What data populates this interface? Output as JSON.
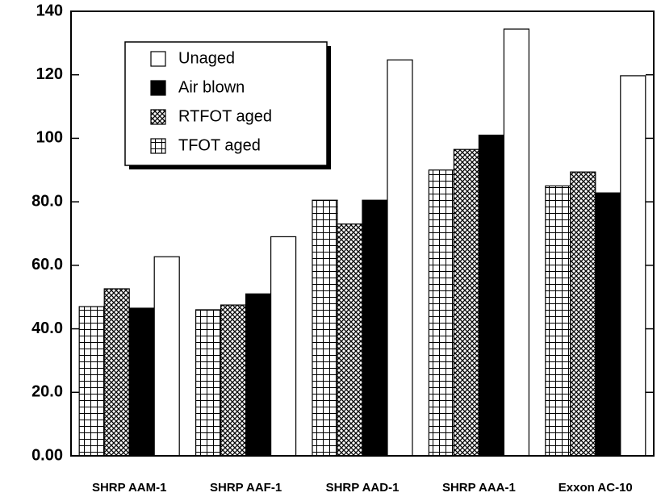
{
  "chart_data": {
    "type": "bar",
    "categories": [
      "SHRP AAM-1",
      "SHRP AAF-1",
      "SHRP AAD-1",
      "SHRP AAA-1",
      "Exxon AC-10"
    ],
    "series": [
      {
        "name": "Unaged",
        "color": "#ffffff",
        "pattern": "solid",
        "values": [
          62.7,
          69,
          124.7,
          134.4,
          119.7
        ]
      },
      {
        "name": "Air blown",
        "color": "#000000",
        "pattern": "solid",
        "values": [
          46.5,
          51,
          80.5,
          101,
          82.8
        ]
      },
      {
        "name": "RTFOT aged",
        "color": "#000000",
        "pattern": "crosshatch",
        "values": [
          52.6,
          47.5,
          73,
          96.5,
          89.4
        ]
      },
      {
        "name": "TFOT aged",
        "color": "#000000",
        "pattern": "grid",
        "values": [
          47,
          46,
          80.5,
          90,
          85
        ]
      }
    ],
    "ylim": [
      0,
      140
    ],
    "yticks": [
      {
        "value": 0,
        "label": "0.00"
      },
      {
        "value": 20,
        "label": "20.0"
      },
      {
        "value": 40,
        "label": "40.0"
      },
      {
        "value": 60,
        "label": "60.0"
      },
      {
        "value": 80,
        "label": "80.0"
      },
      100,
      120,
      140
    ],
    "legend": "upper left"
  }
}
